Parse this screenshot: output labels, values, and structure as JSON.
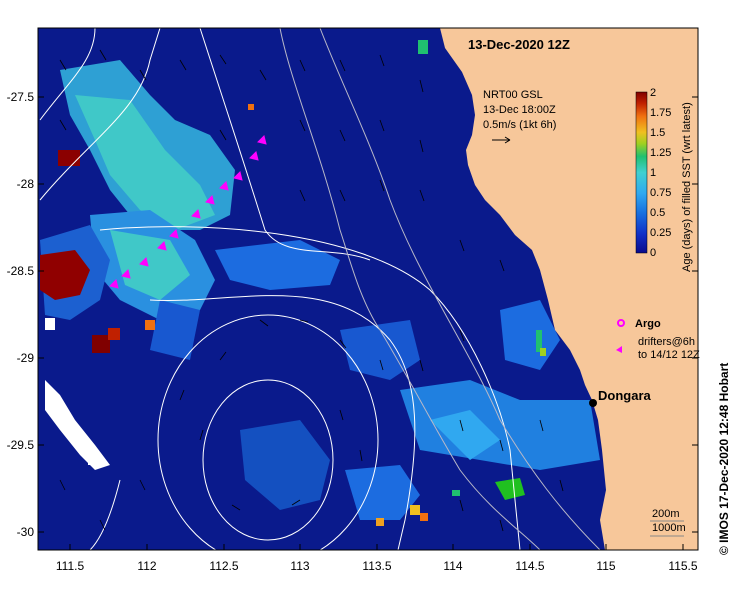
{
  "title": "13-Dec-2020 12Z",
  "current_legend": {
    "line1": "NRT00 GSL",
    "line2": "13-Dec 18:00Z",
    "line3": "0.5m/s (1kt 6h)"
  },
  "colorbar": {
    "label": "Age (days) of filled SST (wrt latest)",
    "ticks": [
      "0",
      "0.25",
      "0.5",
      "0.75",
      "1",
      "1.25",
      "1.5",
      "1.75",
      "2"
    ],
    "colors": [
      "#0a0a8c",
      "#1030c8",
      "#1870e0",
      "#30a8f0",
      "#40d0d0",
      "#20c070",
      "#a0d020",
      "#f0c020",
      "#f07010",
      "#c02000",
      "#800000"
    ]
  },
  "axes": {
    "lat_labels": [
      "-27.5",
      "-28",
      "-28.5",
      "-29",
      "-29.5",
      "-30"
    ],
    "lon_labels": [
      "111.5",
      "112",
      "112.5",
      "113",
      "113.5",
      "114",
      "114.5",
      "115",
      "115.5"
    ]
  },
  "argo_legend": "Argo",
  "drifter_legend_line1": "drifters@6h",
  "drifter_legend_line2": "to 14/12 12Z",
  "place_label": "Dongara",
  "contour_legend_1": "200m",
  "contour_legend_2": "1000m",
  "credit": "© IMOS 17-Dec-2020 12:48 Hobart",
  "colors": {
    "ocean": "#0a1a8c",
    "land": "#f7c79a",
    "argo": "#ff00ff",
    "contour": "#ffffff"
  }
}
